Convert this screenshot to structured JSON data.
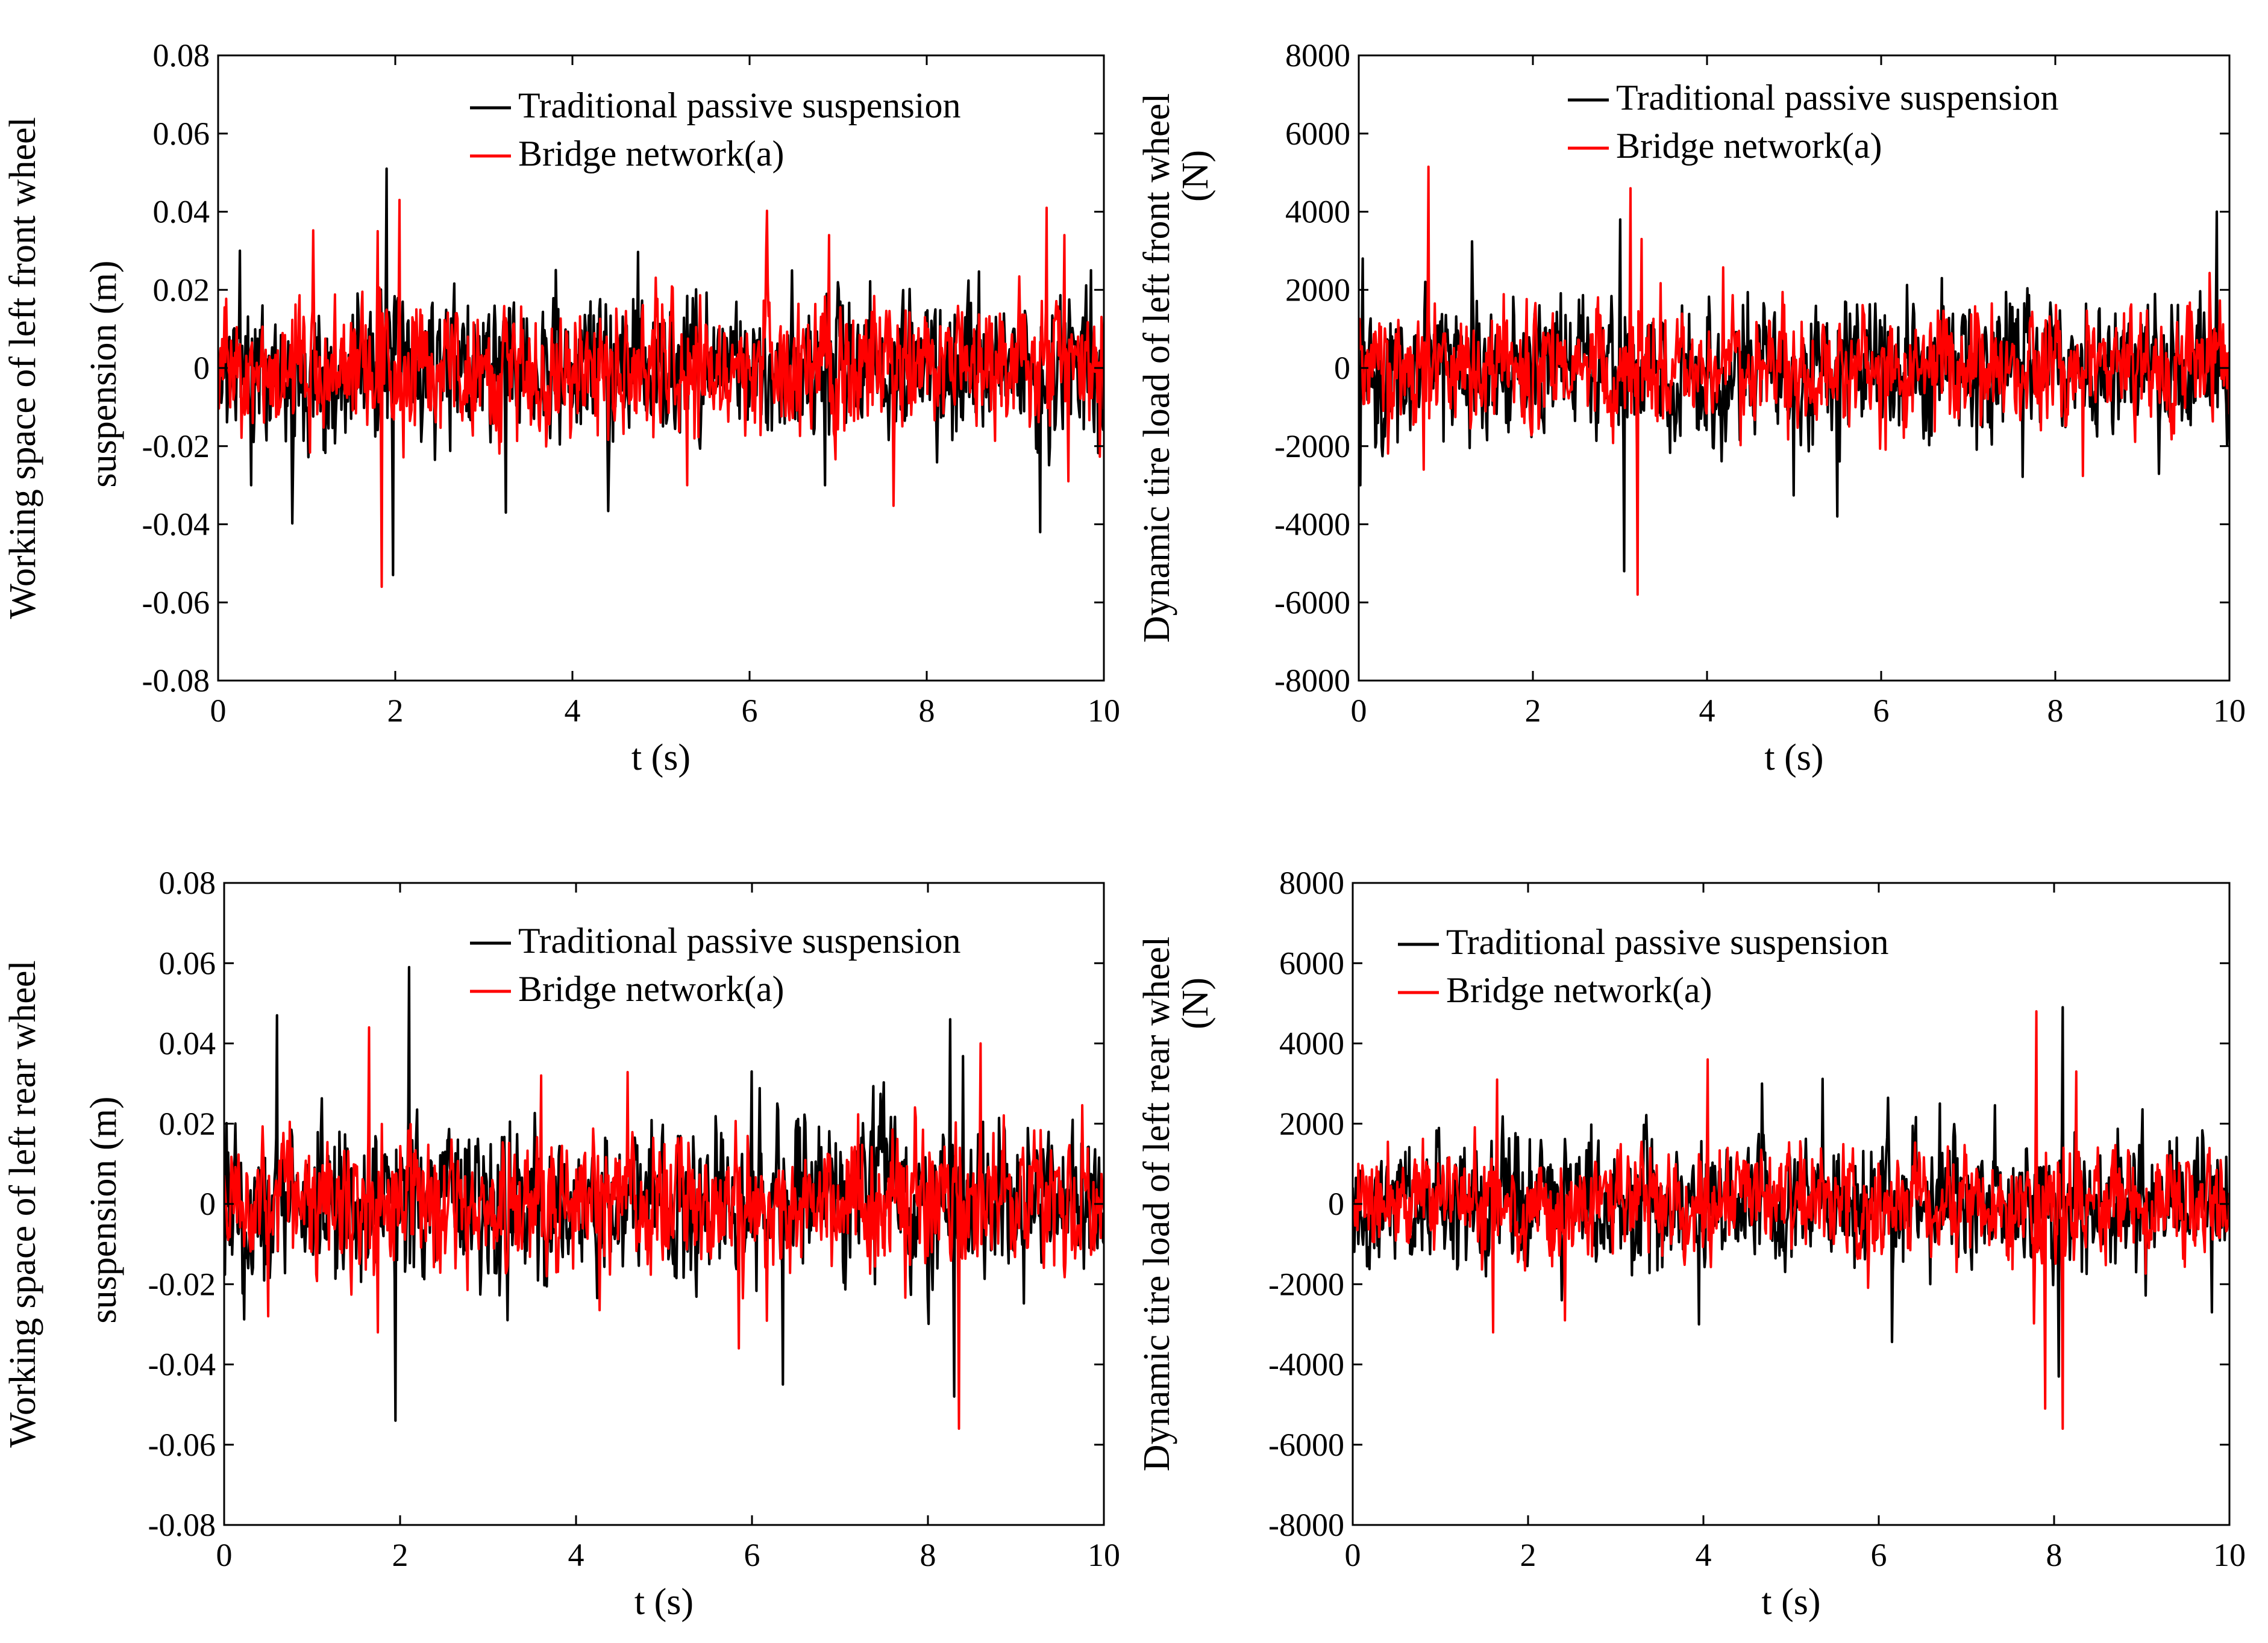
{
  "chart_data": [
    {
      "type": "line",
      "title": "",
      "xlabel": "t (s)",
      "ylabel_lines": [
        "Working space of left front wheel",
        "suspension (m)"
      ],
      "xlim": [
        0,
        10
      ],
      "ylim": [
        -0.08,
        0.08
      ],
      "xticks": [
        0,
        2,
        4,
        6,
        8,
        10
      ],
      "xtick_labels": [
        "0",
        "2",
        "4",
        "6",
        "8",
        "10"
      ],
      "yticks": [
        -0.08,
        -0.06,
        -0.04,
        -0.02,
        0,
        0.02,
        0.04,
        0.06,
        0.08
      ],
      "ytick_labels": [
        "-0.08",
        "-0.06",
        "-0.04",
        "-0.02",
        "0",
        "0.02",
        "0.04",
        "0.06",
        "0.08"
      ],
      "grid": false,
      "legend_position": "top-right",
      "series": [
        {
          "name": "Traditional passive suspension",
          "color": "#000000",
          "peaks": [
            {
              "t": 0.25,
              "v": 0.03
            },
            {
              "t": 0.37,
              "v": -0.03
            },
            {
              "t": 1.9,
              "v": 0.051
            },
            {
              "t": 1.97,
              "v": -0.053
            },
            {
              "t": 3.25,
              "v": -0.037
            },
            {
              "t": 6.85,
              "v": -0.03
            },
            {
              "t": 9.28,
              "v": -0.042
            },
            {
              "t": 9.85,
              "v": 0.025
            }
          ],
          "typical_amplitude": 0.012,
          "seed": 11
        },
        {
          "name": "Bridge network(a)",
          "color": "#ff0000",
          "peaks": [
            {
              "t": 1.85,
              "v": -0.056
            },
            {
              "t": 2.05,
              "v": 0.043
            },
            {
              "t": 1.8,
              "v": 0.035
            },
            {
              "t": 6.9,
              "v": 0.034
            },
            {
              "t": 9.35,
              "v": 0.041
            },
            {
              "t": 9.55,
              "v": 0.034
            },
            {
              "t": 5.3,
              "v": -0.03
            },
            {
              "t": 9.6,
              "v": -0.029
            }
          ],
          "typical_amplitude": 0.011,
          "seed": 23
        }
      ]
    },
    {
      "type": "line",
      "title": "",
      "xlabel": "t (s)",
      "ylabel_lines": [
        "Dynamic tire load of left front wheel",
        "(N)"
      ],
      "xlim": [
        0,
        10
      ],
      "ylim": [
        -8000,
        8000
      ],
      "xticks": [
        0,
        2,
        4,
        6,
        8,
        10
      ],
      "xtick_labels": [
        "0",
        "2",
        "4",
        "6",
        "8",
        "10"
      ],
      "yticks": [
        -8000,
        -6000,
        -4000,
        -2000,
        0,
        2000,
        4000,
        6000,
        8000
      ],
      "ytick_labels": [
        "-8000",
        "-6000",
        "-4000",
        "-2000",
        "0",
        "2000",
        "4000",
        "6000",
        "8000"
      ],
      "grid": false,
      "legend_position": "top-right",
      "series": [
        {
          "name": "Traditional passive suspension",
          "color": "#000000",
          "peaks": [
            {
              "t": 3.0,
              "v": 3800
            },
            {
              "t": 3.05,
              "v": -5200
            },
            {
              "t": 5.5,
              "v": -3800
            },
            {
              "t": 9.85,
              "v": 4000
            },
            {
              "t": 0.05,
              "v": 2800
            },
            {
              "t": 0.02,
              "v": -3000
            },
            {
              "t": 6.7,
              "v": 2300
            }
          ],
          "typical_amplitude": 1200,
          "seed": 37
        },
        {
          "name": "Bridge network(a)",
          "color": "#ff0000",
          "peaks": [
            {
              "t": 0.8,
              "v": 5150
            },
            {
              "t": 3.12,
              "v": 4600
            },
            {
              "t": 3.2,
              "v": -5800
            },
            {
              "t": 0.75,
              "v": -2600
            },
            {
              "t": 3.25,
              "v": 3300
            }
          ],
          "typical_amplitude": 1000,
          "seed": 41
        }
      ]
    },
    {
      "type": "line",
      "title": "",
      "xlabel": "t (s)",
      "ylabel_lines": [
        "Working space of left rear wheel",
        "suspension (m)"
      ],
      "xlim": [
        0,
        10
      ],
      "ylim": [
        -0.08,
        0.08
      ],
      "xticks": [
        0,
        2,
        4,
        6,
        8,
        10
      ],
      "xtick_labels": [
        "0",
        "2",
        "4",
        "6",
        "8",
        "10"
      ],
      "yticks": [
        -0.08,
        -0.06,
        -0.04,
        -0.02,
        0,
        0.02,
        0.04,
        0.06,
        0.08
      ],
      "ytick_labels": [
        "-0.08",
        "-0.06",
        "-0.04",
        "-0.02",
        "0",
        "0.02",
        "0.04",
        "0.06",
        "0.08"
      ],
      "grid": false,
      "legend_position": "top-right",
      "series": [
        {
          "name": "Traditional passive suspension",
          "color": "#000000",
          "peaks": [
            {
              "t": 0.6,
              "v": 0.047
            },
            {
              "t": 2.1,
              "v": 0.059
            },
            {
              "t": 1.95,
              "v": -0.054
            },
            {
              "t": 6.35,
              "v": -0.045
            },
            {
              "t": 8.25,
              "v": 0.046
            },
            {
              "t": 8.3,
              "v": -0.048
            },
            {
              "t": 6.0,
              "v": 0.033
            }
          ],
          "typical_amplitude": 0.013,
          "seed": 53
        },
        {
          "name": "Bridge network(a)",
          "color": "#ff0000",
          "peaks": [
            {
              "t": 1.65,
              "v": 0.044
            },
            {
              "t": 1.75,
              "v": -0.032
            },
            {
              "t": 3.6,
              "v": 0.032
            },
            {
              "t": 5.85,
              "v": -0.036
            },
            {
              "t": 8.35,
              "v": -0.056
            },
            {
              "t": 8.6,
              "v": 0.04
            },
            {
              "t": 0.5,
              "v": -0.028
            }
          ],
          "typical_amplitude": 0.011,
          "seed": 67
        }
      ]
    },
    {
      "type": "line",
      "title": "",
      "xlabel": "t (s)",
      "ylabel_lines": [
        "Dynamic tire load of left rear wheel",
        "(N)"
      ],
      "xlim": [
        0,
        10
      ],
      "ylim": [
        -8000,
        8000
      ],
      "xticks": [
        0,
        2,
        4,
        6,
        8,
        10
      ],
      "xtick_labels": [
        "0",
        "2",
        "4",
        "6",
        "8",
        "10"
      ],
      "yticks": [
        -8000,
        -6000,
        -4000,
        -2000,
        0,
        2000,
        4000,
        6000,
        8000
      ],
      "ytick_labels": [
        "-8000",
        "-6000",
        "-4000",
        "-2000",
        "0",
        "2000",
        "4000",
        "6000",
        "8000"
      ],
      "grid": false,
      "legend_position": "top-left",
      "series": [
        {
          "name": "Traditional passive suspension",
          "color": "#000000",
          "peaks": [
            {
              "t": 8.1,
              "v": 4900
            },
            {
              "t": 8.05,
              "v": -4300
            },
            {
              "t": 3.95,
              "v": 2800
            },
            {
              "t": 3.95,
              "v": -3000
            },
            {
              "t": 6.7,
              "v": 2500
            },
            {
              "t": 9.8,
              "v": -2700
            }
          ],
          "typical_amplitude": 1100,
          "seed": 79
        },
        {
          "name": "Bridge network(a)",
          "color": "#ff0000",
          "peaks": [
            {
              "t": 1.65,
              "v": 3100
            },
            {
              "t": 1.6,
              "v": -3200
            },
            {
              "t": 4.05,
              "v": 3600
            },
            {
              "t": 7.8,
              "v": 4800
            },
            {
              "t": 8.1,
              "v": -5600
            },
            {
              "t": 7.9,
              "v": -5100
            },
            {
              "t": 8.25,
              "v": 3300
            }
          ],
          "typical_amplitude": 900,
          "seed": 83
        }
      ]
    }
  ]
}
